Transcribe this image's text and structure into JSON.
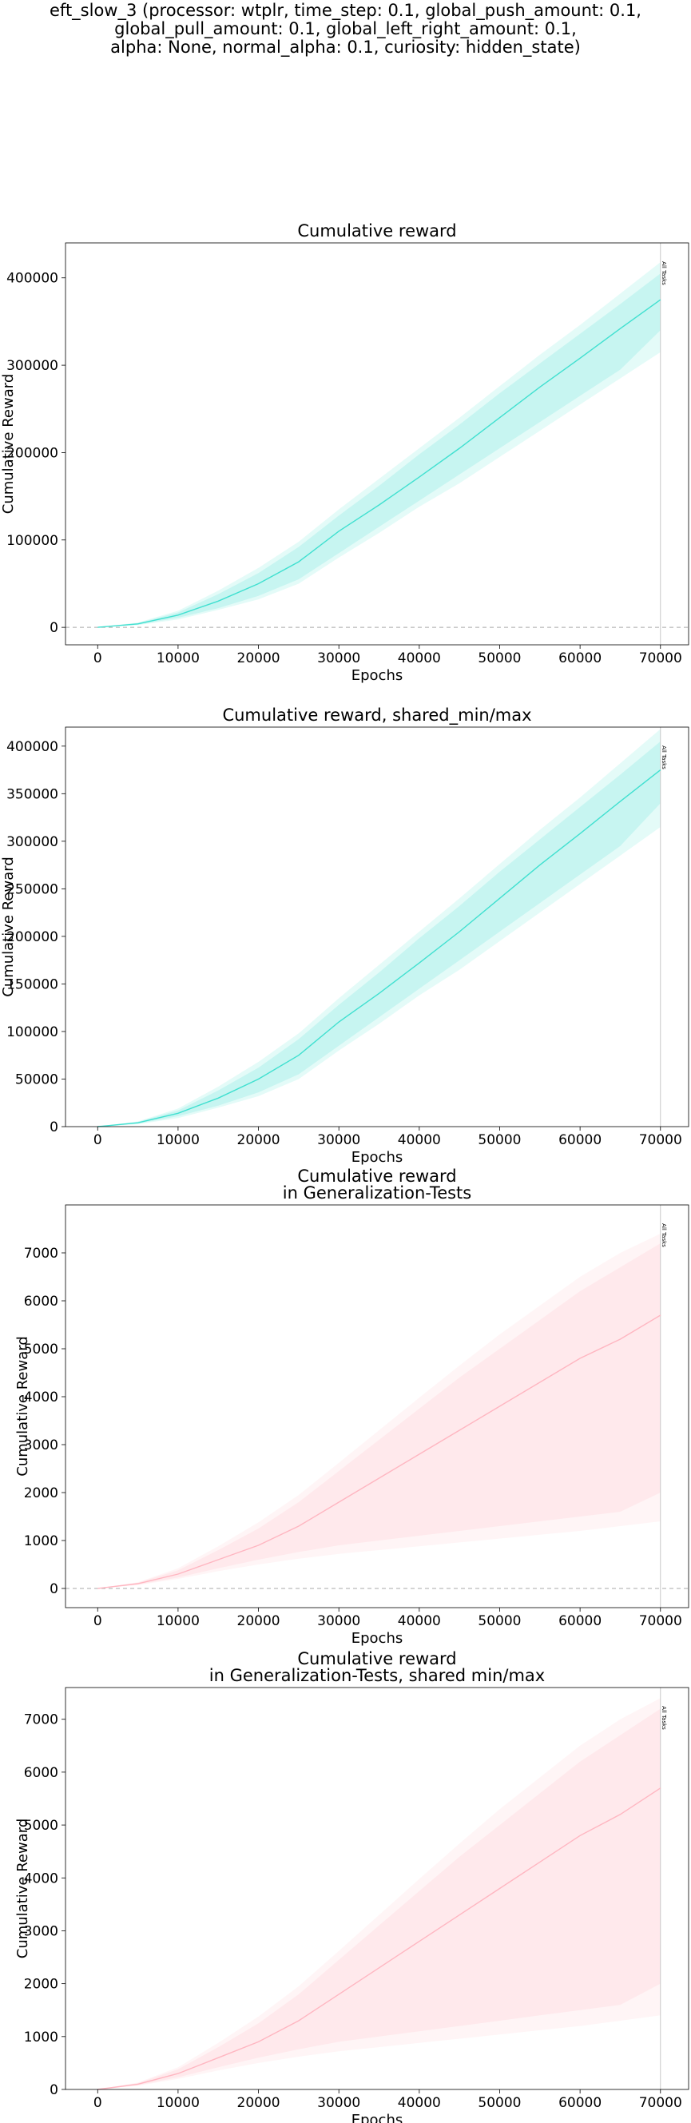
{
  "suptitle": "eft_slow_3 (processor: wtplr, time_step: 0.1, global_push_amount: 0.1,\nglobal_pull_amount: 0.1, global_left_right_amount: 0.1,\nalpha: None, normal_alpha: 0.1, curiosity: hidden_state)",
  "chart_data": [
    {
      "type": "line",
      "title": "Cumulative reward",
      "xlabel": "Epochs",
      "ylabel": "Cumulative Reward",
      "xlim": [
        -4000,
        73500
      ],
      "ylim": [
        -20000,
        440000
      ],
      "xticks": [
        0,
        10000,
        20000,
        30000,
        40000,
        50000,
        60000,
        70000
      ],
      "yticks": [
        0,
        100000,
        200000,
        300000,
        400000
      ],
      "zero_line": true,
      "vline": {
        "x": 70000,
        "label": "All Tasks"
      },
      "color": "#40e0d0",
      "grid": false,
      "series": [
        {
          "x": [
            0,
            5000,
            10000,
            15000,
            20000,
            25000,
            30000,
            35000,
            40000,
            45000,
            50000,
            55000,
            60000,
            65000,
            70000
          ],
          "values": [
            0,
            4000,
            14000,
            30000,
            50000,
            75000,
            110000,
            140000,
            172000,
            205000,
            240000,
            275000,
            308000,
            342000,
            375000
          ],
          "inner_lo": [
            0,
            3000,
            11000,
            22000,
            36000,
            55000,
            85000,
            115000,
            145000,
            175000,
            205000,
            235000,
            265000,
            295000,
            340000
          ],
          "inner_hi": [
            0,
            5000,
            17000,
            38000,
            62000,
            92000,
            128000,
            162000,
            198000,
            232000,
            268000,
            302000,
            336000,
            370000,
            405000
          ],
          "outer_lo": [
            0,
            2500,
            9000,
            20000,
            32000,
            50000,
            80000,
            108000,
            138000,
            165000,
            195000,
            225000,
            255000,
            285000,
            315000
          ],
          "outer_hi": [
            0,
            5500,
            19000,
            42000,
            68000,
            98000,
            135000,
            170000,
            205000,
            240000,
            276000,
            312000,
            346000,
            382000,
            418000
          ]
        }
      ]
    },
    {
      "type": "line",
      "title": "Cumulative reward, shared_min/max",
      "xlabel": "Epochs",
      "ylabel": "Cumulative Reward",
      "xlim": [
        -4000,
        73500
      ],
      "ylim": [
        0,
        420000
      ],
      "xticks": [
        0,
        10000,
        20000,
        30000,
        40000,
        50000,
        60000,
        70000
      ],
      "yticks": [
        0,
        50000,
        100000,
        150000,
        200000,
        250000,
        300000,
        350000,
        400000
      ],
      "zero_line": false,
      "vline": {
        "x": 70000,
        "label": "All Tasks"
      },
      "color": "#40e0d0",
      "grid": false,
      "series": [
        {
          "x": [
            0,
            5000,
            10000,
            15000,
            20000,
            25000,
            30000,
            35000,
            40000,
            45000,
            50000,
            55000,
            60000,
            65000,
            70000
          ],
          "values": [
            0,
            4000,
            14000,
            30000,
            50000,
            75000,
            110000,
            140000,
            172000,
            205000,
            240000,
            275000,
            308000,
            342000,
            375000
          ],
          "inner_lo": [
            0,
            3000,
            11000,
            22000,
            36000,
            55000,
            85000,
            115000,
            145000,
            175000,
            205000,
            235000,
            265000,
            295000,
            340000
          ],
          "inner_hi": [
            0,
            5000,
            17000,
            38000,
            62000,
            92000,
            128000,
            162000,
            198000,
            232000,
            268000,
            302000,
            336000,
            370000,
            405000
          ],
          "outer_lo": [
            0,
            2500,
            9000,
            20000,
            32000,
            50000,
            80000,
            108000,
            138000,
            165000,
            195000,
            225000,
            255000,
            285000,
            315000
          ],
          "outer_hi": [
            0,
            5500,
            19000,
            42000,
            68000,
            98000,
            135000,
            170000,
            205000,
            240000,
            276000,
            312000,
            346000,
            382000,
            418000
          ]
        }
      ]
    },
    {
      "type": "line",
      "title": "Cumulative reward\nin Generalization-Tests",
      "xlabel": "Epochs",
      "ylabel": "Cumulative Reward",
      "xlim": [
        -4000,
        73500
      ],
      "ylim": [
        -400,
        8000
      ],
      "xticks": [
        0,
        10000,
        20000,
        30000,
        40000,
        50000,
        60000,
        70000
      ],
      "yticks": [
        0,
        1000,
        2000,
        3000,
        4000,
        5000,
        6000,
        7000
      ],
      "zero_line": true,
      "vline": {
        "x": 70000,
        "label": "All Tasks"
      },
      "color": "#ffb6c1",
      "grid": false,
      "series": [
        {
          "x": [
            0,
            5000,
            10000,
            15000,
            20000,
            25000,
            30000,
            35000,
            40000,
            45000,
            50000,
            55000,
            60000,
            65000,
            70000
          ],
          "values": [
            0,
            100,
            300,
            600,
            900,
            1300,
            1800,
            2300,
            2800,
            3300,
            3800,
            4300,
            4800,
            5200,
            5700
          ],
          "inner_lo": [
            0,
            80,
            230,
            420,
            600,
            760,
            900,
            1000,
            1100,
            1200,
            1300,
            1400,
            1500,
            1600,
            2000
          ],
          "inner_hi": [
            0,
            120,
            380,
            800,
            1250,
            1800,
            2450,
            3100,
            3750,
            4400,
            5000,
            5600,
            6200,
            6700,
            7200
          ],
          "outer_lo": [
            0,
            70,
            200,
            360,
            500,
            620,
            720,
            800,
            880,
            960,
            1040,
            1120,
            1200,
            1300,
            1400
          ],
          "outer_hi": [
            0,
            130,
            420,
            880,
            1380,
            1950,
            2620,
            3300,
            3980,
            4650,
            5300,
            5900,
            6500,
            7000,
            7400
          ]
        }
      ]
    },
    {
      "type": "line",
      "title": "Cumulative reward\nin Generalization-Tests, shared min/max",
      "xlabel": "Epochs",
      "ylabel": "Cumulative Reward",
      "xlim": [
        -4000,
        73500
      ],
      "ylim": [
        0,
        7600
      ],
      "xticks": [
        0,
        10000,
        20000,
        30000,
        40000,
        50000,
        60000,
        70000
      ],
      "yticks": [
        0,
        1000,
        2000,
        3000,
        4000,
        5000,
        6000,
        7000
      ],
      "zero_line": false,
      "vline": {
        "x": 70000,
        "label": "All Tasks"
      },
      "color": "#ffb6c1",
      "grid": false,
      "series": [
        {
          "x": [
            0,
            5000,
            10000,
            15000,
            20000,
            25000,
            30000,
            35000,
            40000,
            45000,
            50000,
            55000,
            60000,
            65000,
            70000
          ],
          "values": [
            0,
            100,
            300,
            600,
            900,
            1300,
            1800,
            2300,
            2800,
            3300,
            3800,
            4300,
            4800,
            5200,
            5700
          ],
          "inner_lo": [
            0,
            80,
            230,
            420,
            600,
            760,
            900,
            1000,
            1100,
            1200,
            1300,
            1400,
            1500,
            1600,
            2000
          ],
          "inner_hi": [
            0,
            120,
            380,
            800,
            1250,
            1800,
            2450,
            3100,
            3750,
            4400,
            5000,
            5600,
            6200,
            6700,
            7200
          ],
          "outer_lo": [
            0,
            70,
            200,
            360,
            500,
            620,
            720,
            800,
            880,
            960,
            1040,
            1120,
            1200,
            1300,
            1400
          ],
          "outer_hi": [
            0,
            130,
            420,
            880,
            1380,
            1950,
            2620,
            3300,
            3980,
            4650,
            5300,
            5900,
            6500,
            7000,
            7400
          ]
        }
      ]
    }
  ]
}
